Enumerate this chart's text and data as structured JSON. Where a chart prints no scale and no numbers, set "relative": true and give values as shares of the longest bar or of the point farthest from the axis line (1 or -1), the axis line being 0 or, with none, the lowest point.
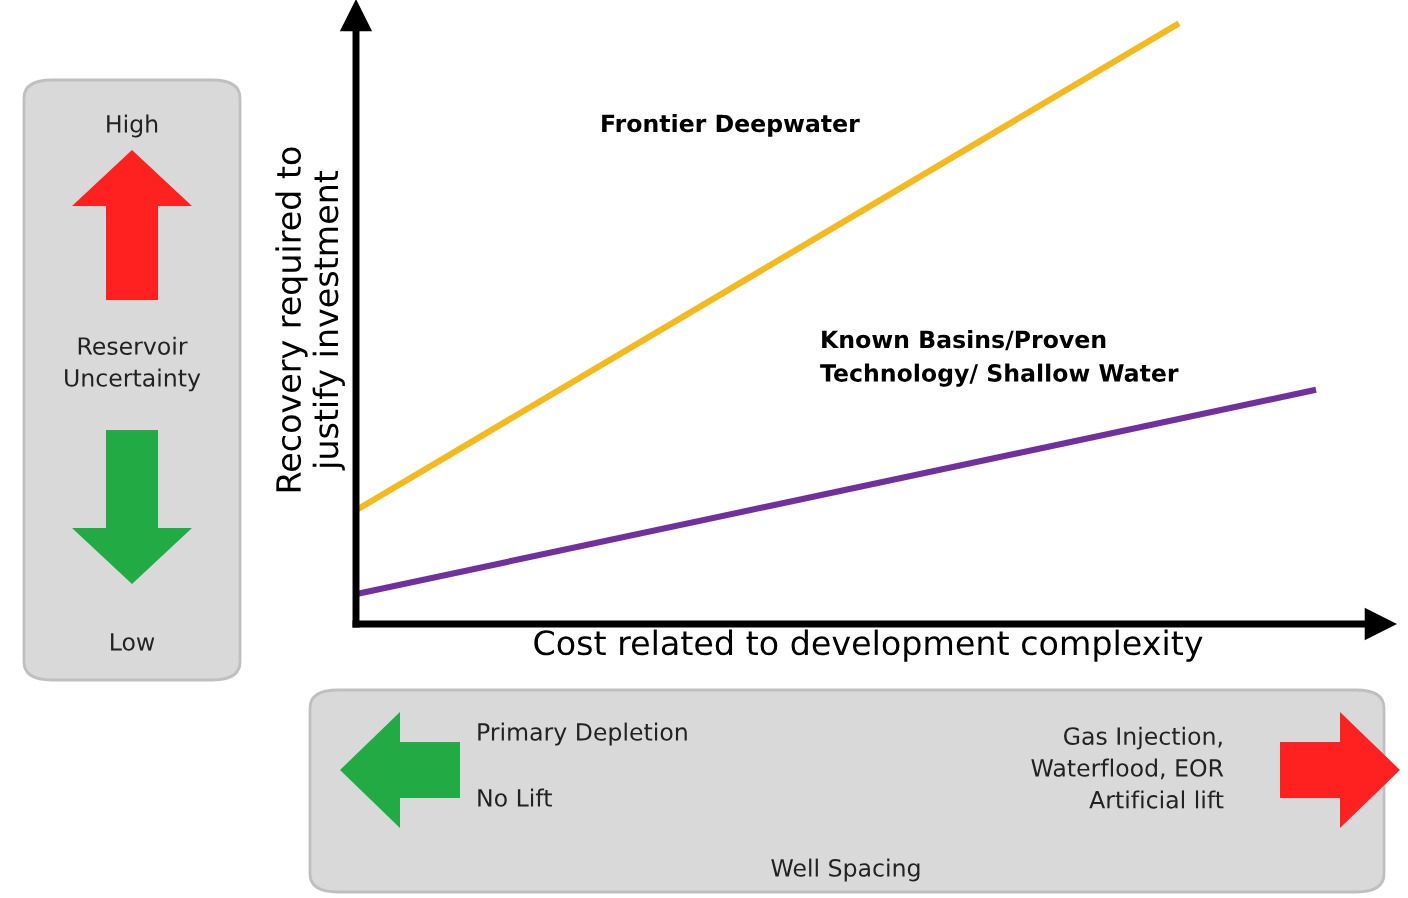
{
  "chart_data": {
    "type": "line",
    "relative": true,
    "xlabel": "Cost related to development complexity",
    "ylabel": "Recovery required to\njustify investment",
    "categories": [
      null,
      null,
      null,
      null,
      null,
      null,
      null,
      null
    ],
    "series": [
      {
        "name": "Frontier Deepwater",
        "color": "#f5b91e",
        "values": [
          0.19,
          null,
          null,
          null,
          null,
          null,
          1,
          null
        ]
      },
      {
        "name": "Known Basins/Proven\nTechnology/ Shallow Water",
        "color": "#7030a0",
        "values": [
          0.05,
          null,
          null,
          null,
          null,
          null,
          null,
          0.39
        ]
      }
    ],
    "annotations": [
      "High",
      "Reservoir\nUncertainty",
      "Low",
      "Primary Depletion",
      "No Lift",
      "Gas Injection,\nWaterflood, EOR\nArtificial lift",
      "Well Spacing"
    ],
    "legend": false,
    "marker": "none",
    "line_style": "solid"
  }
}
